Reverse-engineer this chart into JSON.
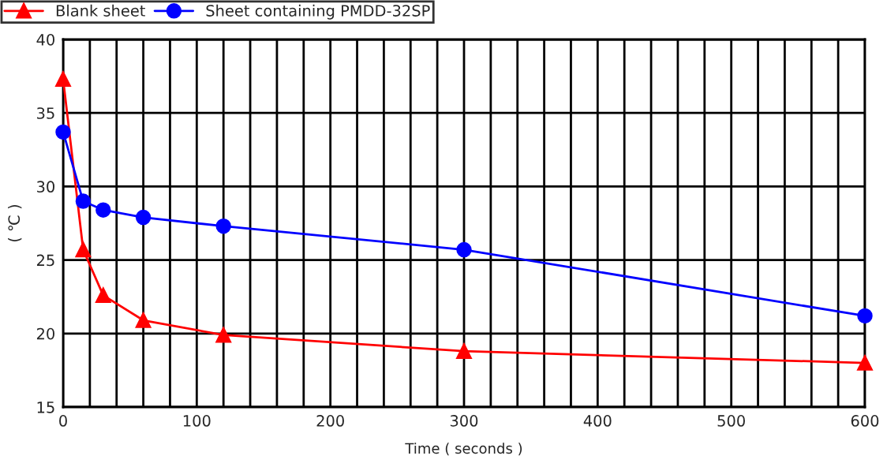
{
  "chart_data": {
    "type": "line",
    "xlabel": "Time ( seconds )",
    "ylabel": "( ℃ )",
    "x": [
      0,
      15,
      30,
      60,
      120,
      300,
      600
    ],
    "series": [
      {
        "name": "Blank sheet",
        "color": "#ff0000",
        "marker": "triangle",
        "values": [
          37.3,
          25.7,
          22.6,
          20.9,
          19.9,
          18.8,
          18.0
        ]
      },
      {
        "name": "Sheet containing PMDD-32SP",
        "color": "#0000ff",
        "marker": "circle",
        "values": [
          33.7,
          29.0,
          28.4,
          27.9,
          27.3,
          25.7,
          21.2
        ]
      }
    ],
    "xlim": [
      0,
      600
    ],
    "xticks": [
      0,
      100,
      200,
      300,
      400,
      500,
      600
    ],
    "ylim": [
      15,
      40
    ],
    "yticks": [
      15,
      20,
      25,
      30,
      35,
      40
    ],
    "grid": true,
    "legend": "top left",
    "line_style": "solid"
  }
}
